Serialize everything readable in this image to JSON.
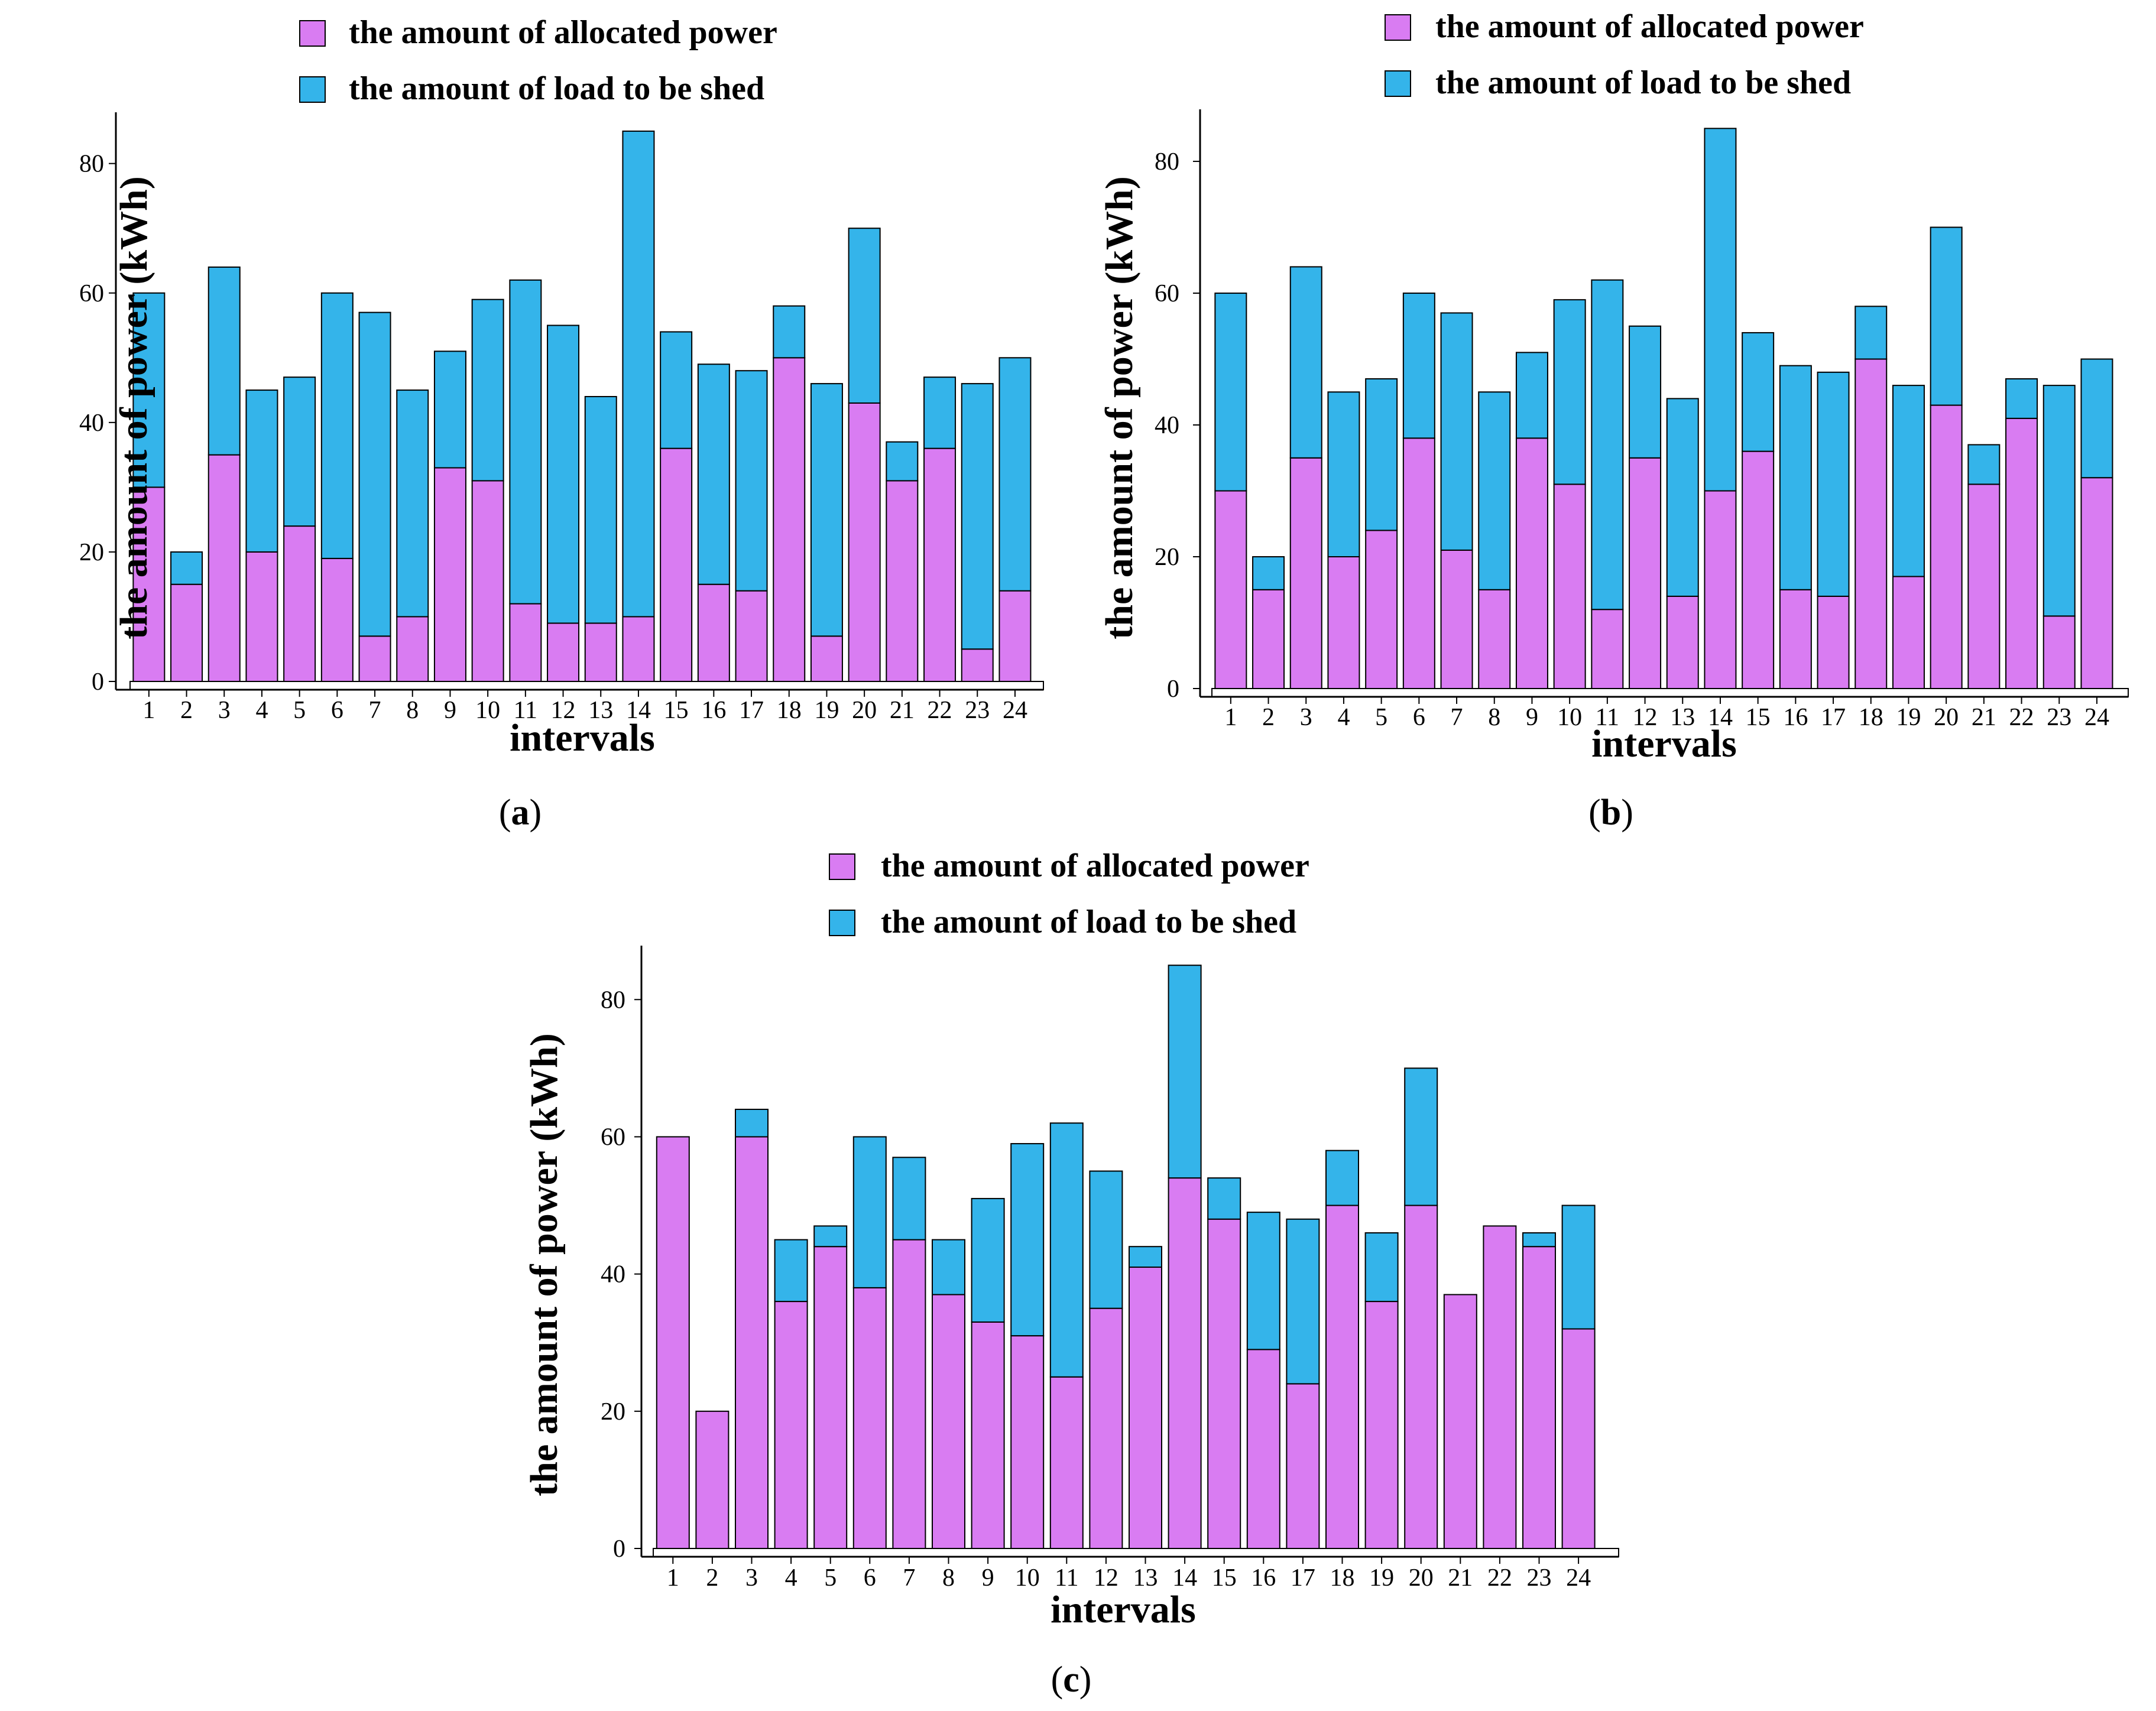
{
  "colors": {
    "allocated": "#d97cf2",
    "shed": "#34b4ea",
    "stroke": "#000000"
  },
  "panel_labels": {
    "a": {
      "open": "(",
      "letter": "a",
      "close": ")"
    },
    "b": {
      "open": "(",
      "letter": "b",
      "close": ")"
    },
    "c": {
      "open": "(",
      "letter": "c",
      "close": ")"
    }
  },
  "chart_data": [
    {
      "id": "a",
      "type": "bar",
      "stacked": true,
      "xlabel": "intervals",
      "ylabel": "the amount of power (kWh)",
      "ylim": [
        0,
        87
      ],
      "yticks": [
        0,
        20,
        40,
        60,
        80
      ],
      "grid": false,
      "legend_position": "top-left",
      "categories": [
        "1",
        "2",
        "3",
        "4",
        "5",
        "6",
        "7",
        "8",
        "9",
        "10",
        "11",
        "12",
        "13",
        "14",
        "15",
        "16",
        "17",
        "18",
        "19",
        "20",
        "21",
        "22",
        "23",
        "24"
      ],
      "totals": [
        60,
        20,
        64,
        45,
        47,
        60,
        57,
        45,
        51,
        59,
        62,
        55,
        44,
        85,
        54,
        49,
        48,
        58,
        46,
        70,
        37,
        47,
        46,
        50
      ],
      "series": [
        {
          "name": "the amount of allocated power",
          "values": [
            30,
            15,
            35,
            20,
            24,
            19,
            7,
            10,
            33,
            31,
            12,
            9,
            9,
            10,
            36,
            15,
            14,
            50,
            7,
            43,
            31,
            36,
            5,
            14
          ]
        },
        {
          "name": "the amount of load to be shed",
          "values": [
            30,
            5,
            29,
            25,
            23,
            41,
            50,
            35,
            18,
            28,
            50,
            46,
            35,
            75,
            18,
            34,
            34,
            8,
            39,
            27,
            6,
            11,
            41,
            36
          ]
        }
      ]
    },
    {
      "id": "b",
      "type": "bar",
      "stacked": true,
      "xlabel": "intervals",
      "ylabel": "the amount of power (kWh)",
      "ylim": [
        0,
        87
      ],
      "yticks": [
        0,
        20,
        40,
        60,
        80
      ],
      "grid": false,
      "legend_position": "top-left",
      "categories": [
        "1",
        "2",
        "3",
        "4",
        "5",
        "6",
        "7",
        "8",
        "9",
        "10",
        "11",
        "12",
        "13",
        "14",
        "15",
        "16",
        "17",
        "18",
        "19",
        "20",
        "21",
        "22",
        "23",
        "24"
      ],
      "totals": [
        60,
        20,
        64,
        45,
        47,
        60,
        57,
        45,
        51,
        59,
        62,
        55,
        44,
        85,
        54,
        49,
        48,
        58,
        46,
        70,
        37,
        47,
        46,
        50
      ],
      "series": [
        {
          "name": "the amount of allocated power",
          "values": [
            30,
            15,
            35,
            20,
            24,
            38,
            21,
            15,
            38,
            31,
            12,
            35,
            14,
            30,
            36,
            15,
            14,
            50,
            17,
            43,
            31,
            41,
            11,
            32
          ]
        },
        {
          "name": "the amount of load to be shed",
          "values": [
            30,
            5,
            29,
            25,
            23,
            22,
            36,
            30,
            13,
            28,
            50,
            20,
            30,
            55,
            18,
            34,
            34,
            8,
            29,
            27,
            6,
            6,
            35,
            18
          ]
        }
      ]
    },
    {
      "id": "c",
      "type": "bar",
      "stacked": true,
      "xlabel": "intervals",
      "ylabel": "the amount of power (kWh)",
      "ylim": [
        0,
        87
      ],
      "yticks": [
        0,
        20,
        40,
        60,
        80
      ],
      "grid": false,
      "legend_position": "top-left",
      "categories": [
        "1",
        "2",
        "3",
        "4",
        "5",
        "6",
        "7",
        "8",
        "9",
        "10",
        "11",
        "12",
        "13",
        "14",
        "15",
        "16",
        "17",
        "18",
        "19",
        "20",
        "21",
        "22",
        "23",
        "24"
      ],
      "totals": [
        60,
        20,
        64,
        45,
        47,
        60,
        57,
        45,
        51,
        59,
        62,
        55,
        44,
        85,
        54,
        49,
        48,
        58,
        46,
        70,
        37,
        47,
        46,
        50
      ],
      "series": [
        {
          "name": "the amount of allocated power",
          "values": [
            60,
            20,
            60,
            36,
            44,
            38,
            45,
            37,
            33,
            31,
            25,
            35,
            41,
            54,
            48,
            29,
            24,
            50,
            36,
            50,
            37,
            47,
            44,
            32
          ]
        },
        {
          "name": "the amount of load to be shed",
          "values": [
            0,
            0,
            4,
            9,
            3,
            22,
            12,
            8,
            18,
            28,
            37,
            20,
            3,
            31,
            6,
            20,
            24,
            8,
            10,
            20,
            0,
            0,
            2,
            18
          ]
        }
      ]
    }
  ]
}
